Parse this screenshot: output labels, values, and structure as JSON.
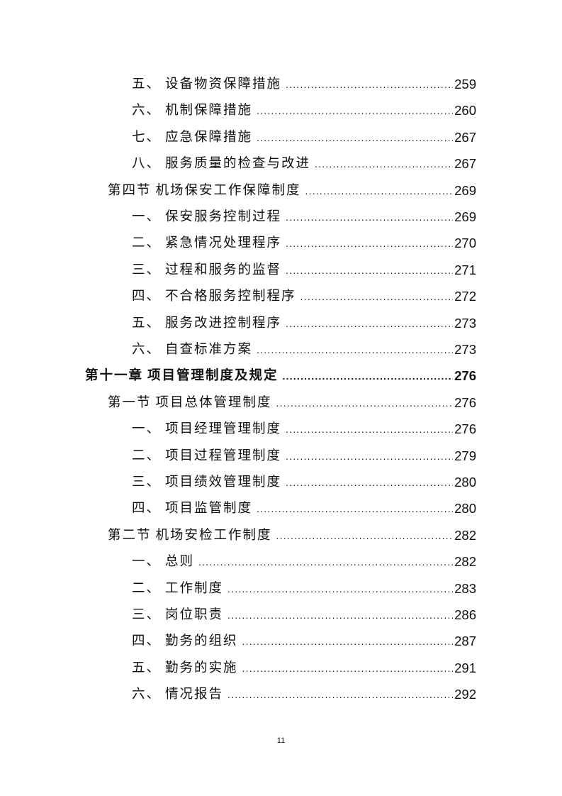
{
  "toc": [
    {
      "level": 3,
      "prefix": "五、",
      "title": "设备物资保障措施",
      "page": "259"
    },
    {
      "level": 3,
      "prefix": "六、",
      "title": "机制保障措施",
      "page": "260"
    },
    {
      "level": 3,
      "prefix": "七、",
      "title": "应急保障措施",
      "page": "267"
    },
    {
      "level": 3,
      "prefix": "八、",
      "title": "服务质量的检查与改进",
      "page": "267"
    },
    {
      "level": 2,
      "prefix": "第四节",
      "title": "机场保安工作保障制度",
      "page": "269"
    },
    {
      "level": 3,
      "prefix": "一、",
      "title": "保安服务控制过程",
      "page": "269"
    },
    {
      "level": 3,
      "prefix": "二、",
      "title": "紧急情况处理程序",
      "page": "270"
    },
    {
      "level": 3,
      "prefix": "三、",
      "title": "过程和服务的监督",
      "page": "271"
    },
    {
      "level": 3,
      "prefix": "四、",
      "title": "不合格服务控制程序",
      "page": "272"
    },
    {
      "level": 3,
      "prefix": "五、",
      "title": "服务改进控制程序",
      "page": "273"
    },
    {
      "level": 3,
      "prefix": "六、",
      "title": "自查标准方案",
      "page": "273"
    },
    {
      "level": 1,
      "prefix": "第十一章",
      "title": "项目管理制度及规定",
      "page": "276"
    },
    {
      "level": 2,
      "prefix": "第一节",
      "title": "项目总体管理制度",
      "page": "276"
    },
    {
      "level": 3,
      "prefix": "一、",
      "title": "项目经理管理制度",
      "page": "276"
    },
    {
      "level": 3,
      "prefix": "二、",
      "title": "项目过程管理制度",
      "page": "279"
    },
    {
      "level": 3,
      "prefix": "三、",
      "title": "项目绩效管理制度",
      "page": "280"
    },
    {
      "level": 3,
      "prefix": "四、",
      "title": "项目监管制度",
      "page": "280"
    },
    {
      "level": 2,
      "prefix": "第二节",
      "title": "机场安检工作制度",
      "page": "282"
    },
    {
      "level": 3,
      "prefix": "一、",
      "title": "总则",
      "page": "282"
    },
    {
      "level": 3,
      "prefix": "二、",
      "title": "工作制度",
      "page": "283"
    },
    {
      "level": 3,
      "prefix": "三、",
      "title": "岗位职责",
      "page": "286"
    },
    {
      "level": 3,
      "prefix": "四、",
      "title": "勤务的组织",
      "page": "287"
    },
    {
      "level": 3,
      "prefix": "五、",
      "title": "勤务的实施",
      "page": "291"
    },
    {
      "level": 3,
      "prefix": "六、",
      "title": "情况报告",
      "page": "292"
    }
  ],
  "footer": {
    "page_number": "11"
  }
}
